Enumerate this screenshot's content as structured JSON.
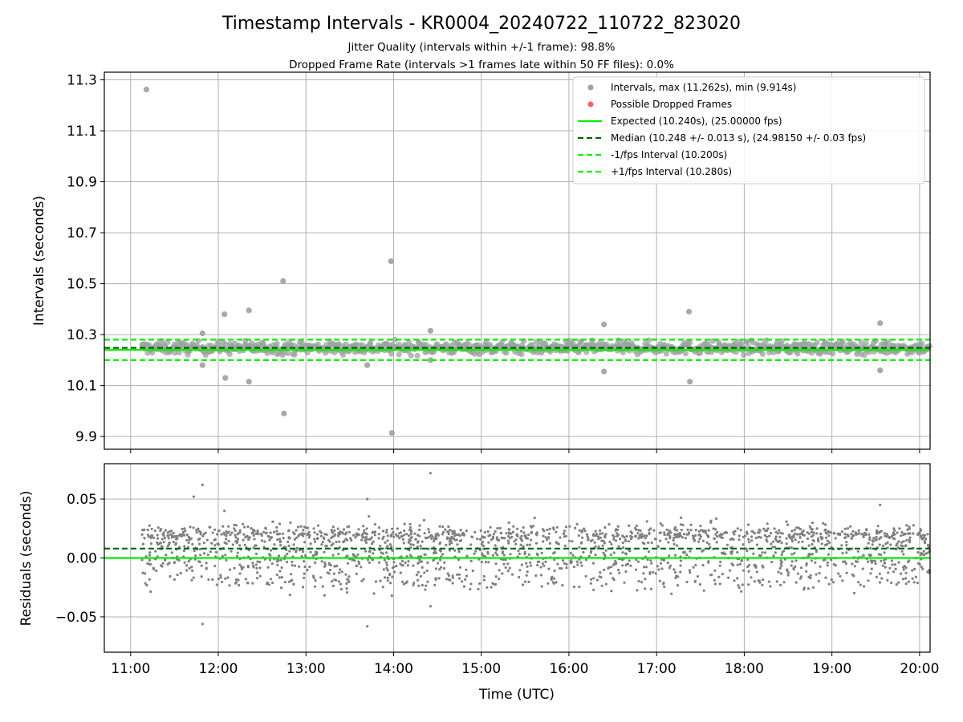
{
  "chart_data": [
    {
      "type": "scatter",
      "title": "Timestamp Intervals - KR0004_20240722_110722_823020",
      "subtitle_lines": [
        "Jitter Quality (intervals within +/-1 frame): 98.8%",
        "Dropped Frame Rate (intervals >1 frames late within 50 FF files): 0.0%"
      ],
      "ylabel": "Intervals (seconds)",
      "x_range_hours": [
        10.7,
        20.12
      ],
      "ylim": [
        9.85,
        11.33
      ],
      "yticks": [
        9.9,
        10.1,
        10.3,
        10.5,
        10.7,
        10.9,
        11.1,
        11.3
      ],
      "ytick_labels": [
        "9.9",
        "10.1",
        "10.3",
        "10.5",
        "10.7",
        "10.9",
        "11.1",
        "11.3"
      ],
      "grid": true,
      "legend_position": "top-right",
      "legend": [
        "Intervals, max (11.262s), min (9.914s)",
        "Possible Dropped Frames",
        "Expected (10.240s), (25.00000 fps)",
        "Median (10.248 +/- 0.013 s), (24.98150 +/- 0.03 fps)",
        "-1/fps Interval (10.200s)",
        "+1/fps Interval (10.280s)"
      ],
      "series": [
        {
          "name": "Intervals, max (11.262s), min (9.914s)",
          "color": "#a0a0a0",
          "band": {
            "x_start_hour": 11.13,
            "x_end_hour": 20.12,
            "center": 10.248,
            "spread": 0.02,
            "count": 900
          },
          "outliers": [
            [
              11.18,
              11.262
            ],
            [
              12.07,
              10.38
            ],
            [
              12.08,
              10.13
            ],
            [
              12.35,
              10.395
            ],
            [
              12.35,
              10.115
            ],
            [
              12.74,
              10.51
            ],
            [
              12.75,
              9.99
            ],
            [
              13.97,
              10.588
            ],
            [
              13.98,
              9.914
            ],
            [
              14.42,
              10.315
            ],
            [
              11.82,
              10.305
            ],
            [
              11.82,
              10.18
            ],
            [
              13.7,
              10.18
            ],
            [
              14.42,
              10.2
            ],
            [
              16.4,
              10.34
            ],
            [
              16.4,
              10.155
            ],
            [
              17.37,
              10.39
            ],
            [
              17.38,
              10.115
            ],
            [
              19.55,
              10.345
            ],
            [
              19.55,
              10.16
            ]
          ]
        },
        {
          "name": "Possible Dropped Frames",
          "color": "#ff6060",
          "points": []
        }
      ],
      "lines": [
        {
          "name": "Expected (10.240s), (25.00000 fps)",
          "y": 10.24,
          "color": "#00ee00",
          "style": "solid"
        },
        {
          "name": "Median (10.248 +/- 0.013 s), (24.98150 +/- 0.03 fps)",
          "y": 10.248,
          "color": "#006400",
          "style": "dashed"
        },
        {
          "name": "-1/fps Interval (10.200s)",
          "y": 10.2,
          "color": "#00ee00",
          "style": "dashed"
        },
        {
          "name": "+1/fps Interval (10.280s)",
          "y": 10.28,
          "color": "#00ee00",
          "style": "dashed"
        }
      ]
    },
    {
      "type": "scatter",
      "xlabel": "Time (UTC)",
      "ylabel": "Residuals (seconds)",
      "x_range_hours": [
        10.7,
        20.12
      ],
      "xticks_hours": [
        11,
        12,
        13,
        14,
        15,
        16,
        17,
        18,
        19,
        20
      ],
      "xtick_labels": [
        "11:00",
        "12:00",
        "13:00",
        "14:00",
        "15:00",
        "16:00",
        "17:00",
        "18:00",
        "19:00",
        "20:00"
      ],
      "ylim": [
        -0.08,
        0.08
      ],
      "yticks": [
        -0.05,
        0.0,
        0.05
      ],
      "ytick_labels": [
        "−0.05",
        "0.00",
        "0.05"
      ],
      "grid": true,
      "series": [
        {
          "color": "#808080",
          "bands": [
            {
              "center": 0.0,
              "spread": 0.012,
              "count": 1100
            },
            {
              "center": 0.02,
              "spread": 0.004,
              "count": 800
            },
            {
              "center": -0.02,
              "spread": 0.003,
              "count": 110
            }
          ],
          "x_start_hour": 11.13,
          "x_end_hour": 20.12,
          "outliers": [
            [
              11.82,
              0.062
            ],
            [
              11.82,
              -0.056
            ],
            [
              13.7,
              -0.058
            ],
            [
              13.7,
              0.05
            ],
            [
              14.42,
              0.072
            ],
            [
              14.42,
              -0.041
            ],
            [
              11.72,
              0.052
            ],
            [
              12.07,
              0.04
            ],
            [
              13.98,
              -0.032
            ],
            [
              19.55,
              0.045
            ]
          ]
        }
      ],
      "lines": [
        {
          "y": 0.0,
          "color": "#00ee00",
          "style": "solid"
        },
        {
          "y": 0.008,
          "color": "#006400",
          "style": "dashed"
        }
      ]
    }
  ]
}
